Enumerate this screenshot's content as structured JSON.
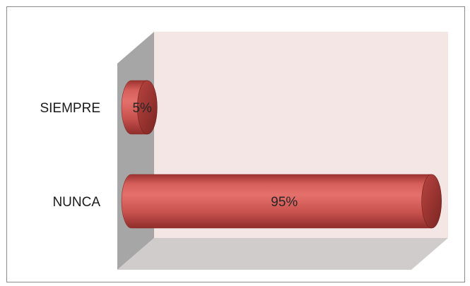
{
  "chart_data": {
    "type": "bar",
    "orientation": "horizontal",
    "style": "3d-cylinder",
    "categories": [
      "SIEMPRE",
      "NUNCA"
    ],
    "values": [
      5,
      95
    ],
    "value_labels": [
      "5%",
      "95%"
    ],
    "unit": "%",
    "xlim": [
      0,
      100
    ],
    "title": "",
    "xlabel": "",
    "ylabel": "",
    "legend": "none",
    "grid": false,
    "colors": {
      "bar": "#c0504d",
      "back_wall": "#f5e6e6",
      "side_wall": "#a6a6a6",
      "floor": "#d0cccc",
      "frame": "#8c8c8c"
    }
  }
}
